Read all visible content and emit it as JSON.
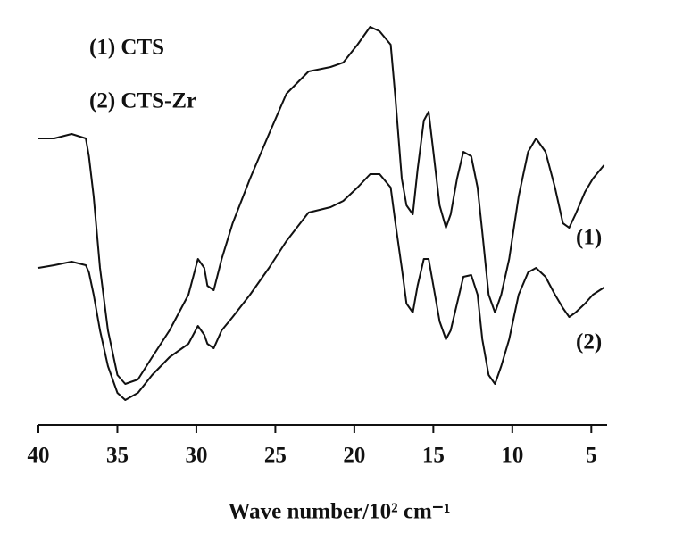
{
  "chart_data": {
    "type": "line",
    "legend": [
      "(1) CTS",
      "(2) CTS-Zr"
    ],
    "curve_labels": [
      "(1)",
      "(2)"
    ],
    "x_label": "Wave number/10² cm⁻¹",
    "xlim": [
      40,
      4
    ],
    "xticks": [
      40,
      35,
      30,
      25,
      20,
      15,
      10,
      5
    ],
    "ylim": [
      0,
      466
    ],
    "x": [
      40.0,
      39.0,
      37.9,
      37.0,
      36.8,
      36.5,
      36.1,
      35.6,
      35.0,
      34.5,
      33.7,
      32.8,
      31.7,
      30.5,
      29.9,
      29.5,
      29.3,
      28.9,
      28.4,
      27.7,
      26.6,
      25.4,
      24.3,
      22.9,
      21.5,
      20.7,
      19.8,
      19.0,
      18.4,
      17.7,
      17.4,
      17.0,
      16.7,
      16.3,
      16.0,
      15.6,
      15.3,
      15.0,
      14.6,
      14.2,
      13.9,
      13.5,
      13.1,
      12.6,
      12.2,
      11.9,
      11.5,
      11.1,
      10.7,
      10.2,
      9.6,
      9.0,
      8.5,
      7.9,
      7.3,
      6.8,
      6.4,
      6.0,
      5.4,
      4.9,
      4.2
    ],
    "series": [
      {
        "color": "#111111",
        "values": [
          321,
          321,
          326,
          321,
          301,
          256,
          176,
          106,
          56,
          46,
          51,
          76,
          106,
          146,
          186,
          176,
          156,
          151,
          186,
          226,
          276,
          326,
          371,
          396,
          401,
          406,
          426,
          446,
          441,
          426,
          366,
          276,
          246,
          236,
          286,
          341,
          351,
          306,
          246,
          221,
          236,
          276,
          306,
          301,
          266,
          216,
          146,
          126,
          146,
          186,
          256,
          306,
          321,
          306,
          266,
          226,
          221,
          236,
          261,
          276,
          291
        ]
      },
      {
        "color": "#111111",
        "values": [
          176,
          179,
          183,
          179,
          171,
          146,
          106,
          66,
          36,
          28,
          36,
          56,
          76,
          91,
          111,
          101,
          91,
          86,
          106,
          121,
          146,
          176,
          206,
          238,
          244,
          251,
          266,
          281,
          281,
          266,
          226,
          176,
          136,
          126,
          156,
          186,
          186,
          156,
          116,
          96,
          106,
          136,
          166,
          168,
          146,
          96,
          56,
          46,
          66,
          96,
          146,
          171,
          176,
          166,
          146,
          131,
          121,
          126,
          136,
          146,
          154
        ]
      }
    ]
  }
}
